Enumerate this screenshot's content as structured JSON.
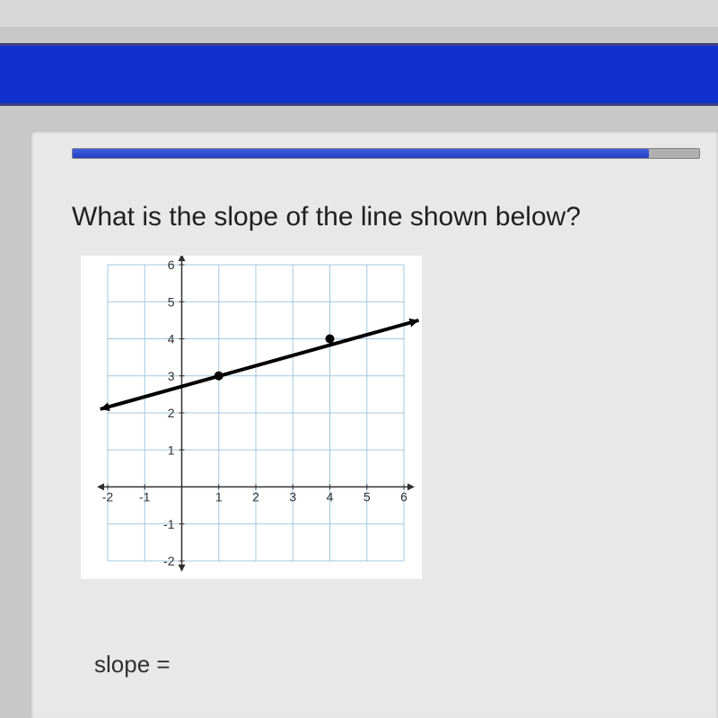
{
  "top": {
    "partial_text": ""
  },
  "progress": {
    "percent": 92
  },
  "question": {
    "text": "What is the slope of the line shown below?"
  },
  "chart": {
    "type": "line",
    "background_color": "#ffffff",
    "grid_color": "#a0c8e0",
    "axis_color": "#303030",
    "text_color": "#303030",
    "label_fontsize": 14,
    "xlim": [
      -2,
      6
    ],
    "ylim": [
      -2,
      6
    ],
    "xtick_step": 1,
    "ytick_step": 1,
    "xticks": [
      -2,
      -1,
      1,
      2,
      3,
      4,
      5,
      6
    ],
    "yticks": [
      -2,
      -1,
      1,
      2,
      3,
      4,
      5,
      6
    ],
    "line": {
      "color": "#000000",
      "width": 4,
      "x_start": -2.2,
      "y_start": 2.1,
      "x_end": 6.4,
      "y_end": 4.5,
      "arrow_start": true,
      "arrow_end": true
    },
    "points": [
      {
        "x": 1,
        "y": 3,
        "r": 5,
        "color": "#000000"
      },
      {
        "x": 4,
        "y": 4,
        "r": 5,
        "color": "#000000"
      }
    ]
  },
  "answer": {
    "label": "slope ="
  }
}
